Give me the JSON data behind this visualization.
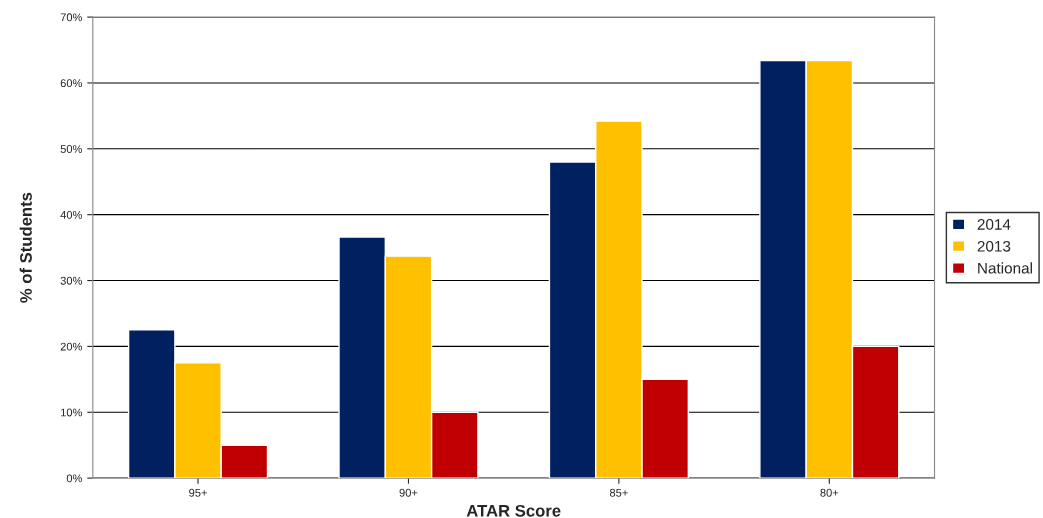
{
  "chart_data": {
    "type": "bar",
    "xlabel": "ATAR Score",
    "ylabel": "% of Students",
    "categories": [
      "95+",
      "90+",
      "85+",
      "80+"
    ],
    "series": [
      {
        "name": "2014",
        "color": "#002060",
        "values": [
          22.5,
          36.6,
          48,
          63.4
        ]
      },
      {
        "name": "2013",
        "color": "#ffc000",
        "values": [
          17.5,
          33.7,
          54.2,
          63.4
        ]
      },
      {
        "name": "National",
        "color": "#c00000",
        "values": [
          5,
          10,
          15,
          20
        ]
      }
    ],
    "ylim": [
      0,
      70
    ],
    "yticks": [
      {
        "value": 0,
        "label": "0%"
      },
      {
        "value": 10,
        "label": "10%"
      },
      {
        "value": 20,
        "label": "20%"
      },
      {
        "value": 30,
        "label": "30%"
      },
      {
        "value": 40,
        "label": "40%"
      },
      {
        "value": 50,
        "label": "50%"
      },
      {
        "value": 60,
        "label": "60%"
      },
      {
        "value": 70,
        "label": "70%"
      }
    ],
    "grid": "y",
    "legend": "right"
  }
}
